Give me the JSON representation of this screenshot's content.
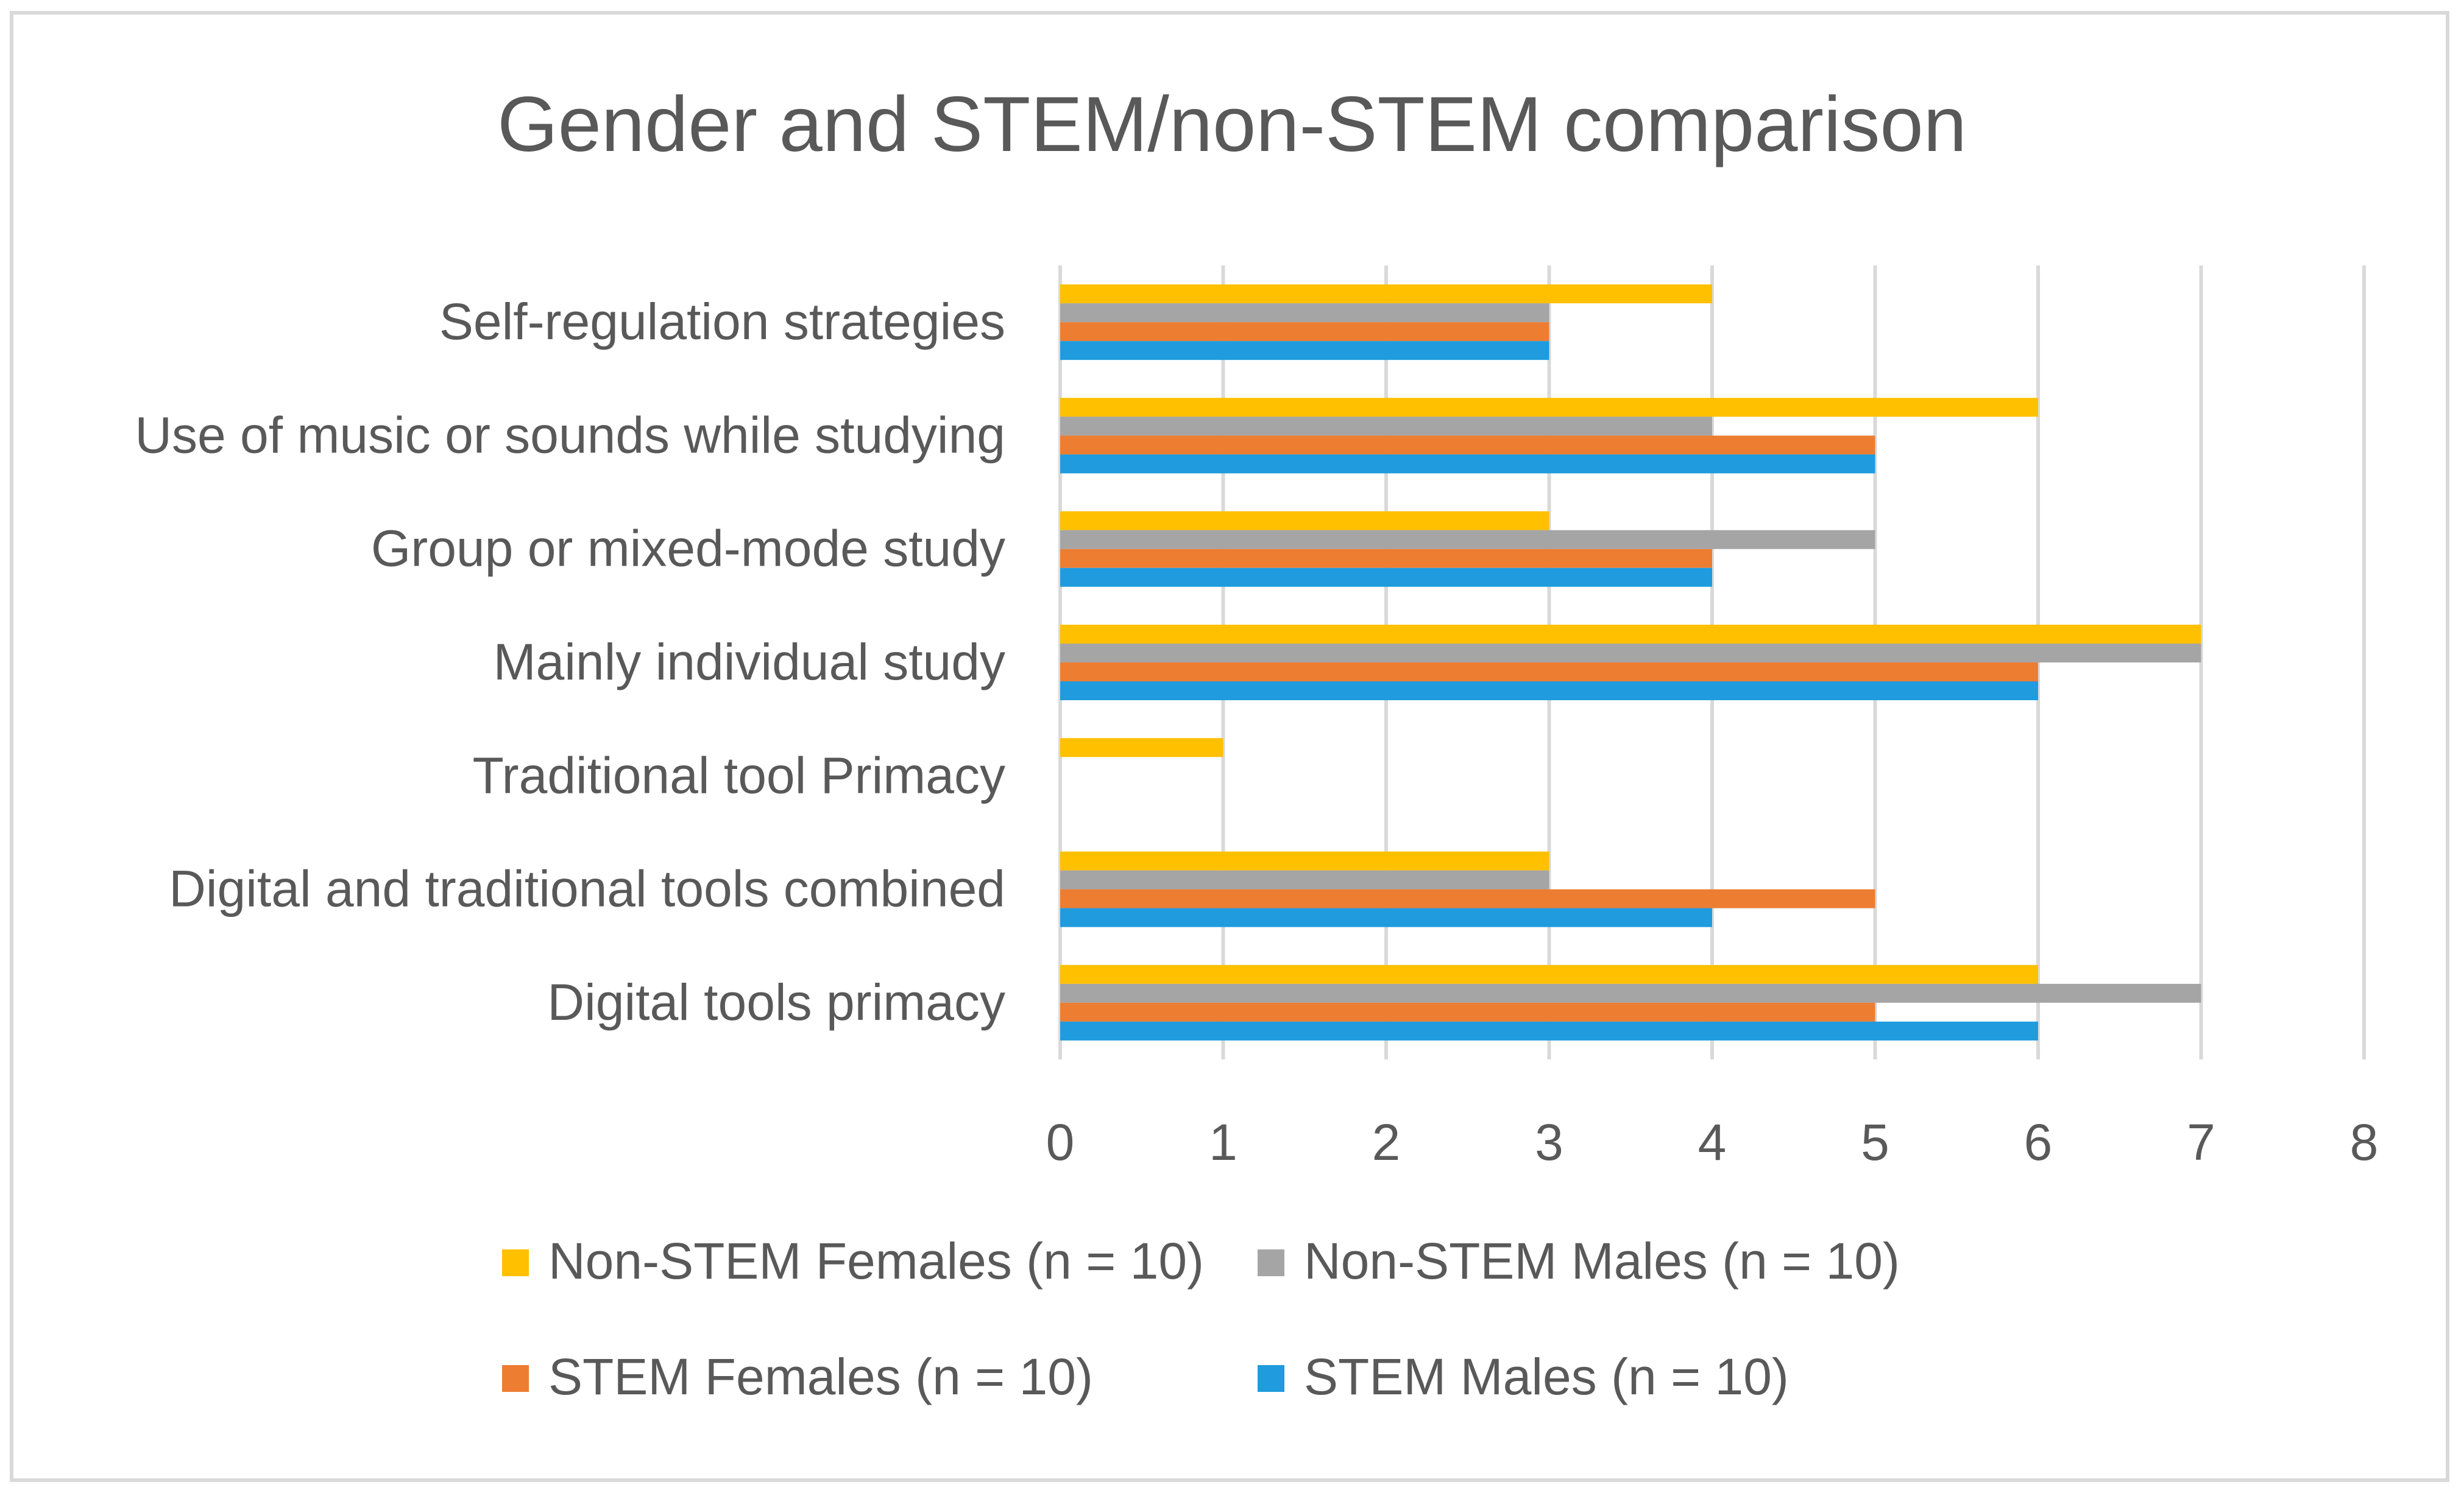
{
  "chart_data": {
    "type": "bar",
    "orientation": "horizontal",
    "title": "Gender and STEM/non-STEM comparison",
    "categories": [
      "Self-regulation strategies",
      "Use of music or sounds while studying",
      "Group or mixed-mode study",
      "Mainly individual study",
      "Traditional tool Primacy",
      "Digital and traditional tools combined",
      "Digital tools primacy"
    ],
    "series": [
      {
        "name": "Non-STEM Females (n = 10)",
        "color": "#FFC000",
        "values": [
          4,
          6,
          3,
          7,
          1,
          3,
          6
        ]
      },
      {
        "name": "Non-STEM Males (n = 10)",
        "color": "#A5A5A5",
        "values": [
          3,
          4,
          5,
          7,
          0,
          3,
          7
        ]
      },
      {
        "name": "STEM Females (n = 10)",
        "color": "#ED7D31",
        "values": [
          3,
          5,
          4,
          6,
          0,
          5,
          5
        ]
      },
      {
        "name": "STEM Males (n = 10)",
        "color": "#1F9BDE",
        "values": [
          3,
          5,
          4,
          6,
          0,
          4,
          6
        ]
      }
    ],
    "xlim": [
      0,
      8
    ],
    "xticks": [
      "0",
      "1",
      "2",
      "3",
      "4",
      "5",
      "6",
      "7",
      "8"
    ],
    "xlabel": "",
    "ylabel": "",
    "grid": true,
    "legend_position": "bottom"
  }
}
